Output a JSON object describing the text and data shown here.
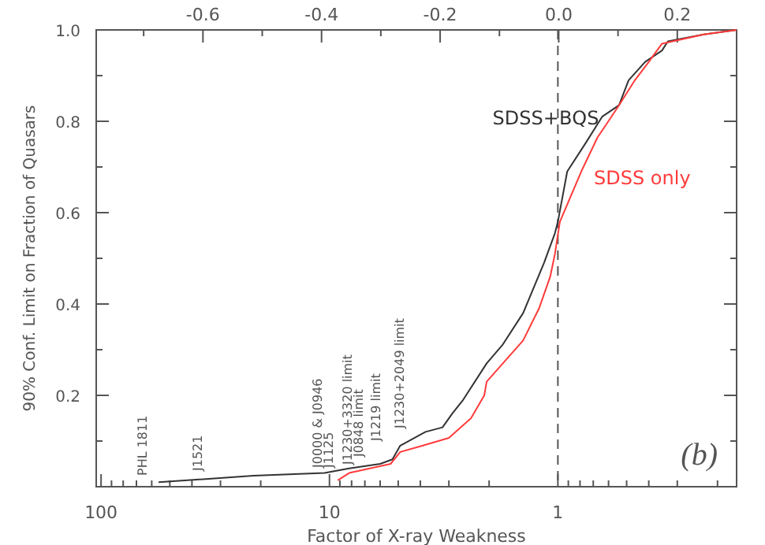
{
  "chart_data": {
    "type": "line",
    "xlabel": "Factor of X-ray Weakness",
    "ylabel": "90% Conf. Limit on Fraction of Quasars",
    "log": "x",
    "xlim": [
      105,
      0.165
    ],
    "xticks": [
      {
        "value": 100,
        "label": "100"
      },
      {
        "value": 90,
        "label": null
      },
      {
        "value": 80,
        "label": null
      },
      {
        "value": 70,
        "label": null
      },
      {
        "value": 60,
        "label": null
      },
      {
        "value": 50,
        "label": null
      },
      {
        "value": 40,
        "label": null
      },
      {
        "value": 30,
        "label": null
      },
      {
        "value": 20,
        "label": null
      },
      {
        "value": 10,
        "label": "10"
      },
      {
        "value": 9,
        "label": null
      },
      {
        "value": 8,
        "label": null
      },
      {
        "value": 7,
        "label": null
      },
      {
        "value": 6,
        "label": null
      },
      {
        "value": 5,
        "label": null
      },
      {
        "value": 4,
        "label": null
      },
      {
        "value": 3,
        "label": null
      },
      {
        "value": 2,
        "label": null
      },
      {
        "value": 1,
        "label": "1"
      },
      {
        "value": 0.9,
        "label": null
      },
      {
        "value": 0.8,
        "label": null
      },
      {
        "value": 0.7,
        "label": null
      },
      {
        "value": 0.6,
        "label": null
      },
      {
        "value": 0.5,
        "label": null
      },
      {
        "value": 0.4,
        "label": null
      },
      {
        "value": 0.3,
        "label": null
      },
      {
        "value": 0.2,
        "label": null
      }
    ],
    "x2lim": [
      -0.78,
      0.3
    ],
    "x2ticks": [
      {
        "value": -0.7,
        "label": null
      },
      -0.6,
      {
        "value": -0.5,
        "label": null
      },
      -0.4,
      {
        "value": -0.3,
        "label": null
      },
      -0.2,
      {
        "value": -0.1,
        "label": null
      },
      {
        "value": 0,
        "label": "0.0"
      },
      {
        "value": 0.1,
        "label": null
      },
      0.2
    ],
    "ylim": [
      0,
      1
    ],
    "yticks": [
      {
        "value": 0.1,
        "label": null
      },
      0.2,
      {
        "value": 0.3,
        "label": null
      },
      0.4,
      {
        "value": 0.5,
        "label": null
      },
      0.6,
      {
        "value": 0.7,
        "label": null
      },
      0.8,
      {
        "value": 0.9,
        "label": null
      },
      {
        "value": 1,
        "label": "1.0"
      }
    ],
    "grid": false,
    "marker": "none",
    "series": [
      {
        "name": "SDSS+BQS",
        "color": "#333333",
        "x": [
          56,
          21.5,
          10.5,
          8.2,
          6.0,
          5.3,
          4.9,
          3.8,
          3.2,
          2.9,
          2.6,
          2.05,
          1.75,
          1.42,
          1.15,
          1.03,
          1.0,
          0.91,
          0.75,
          0.64,
          0.54,
          0.49,
          0.415,
          0.35,
          0.33,
          0.23,
          0.165
        ],
        "values": [
          0.01,
          0.024,
          0.03,
          0.04,
          0.05,
          0.06,
          0.09,
          0.12,
          0.13,
          0.16,
          0.19,
          0.27,
          0.31,
          0.38,
          0.49,
          0.555,
          0.58,
          0.69,
          0.755,
          0.81,
          0.835,
          0.89,
          0.93,
          0.955,
          0.975,
          0.99,
          1.0
        ]
      },
      {
        "name": "SDSS only",
        "color": "#ff3b3b",
        "x": [
          9.2,
          8.2,
          5.4,
          4.9,
          3.9,
          3.0,
          2.4,
          2.1,
          2.05,
          1.42,
          1.21,
          1.08,
          1.03,
          0.98,
          0.79,
          0.67,
          0.54,
          0.46,
          0.4,
          0.35,
          0.23,
          0.165
        ],
        "values": [
          0.014,
          0.03,
          0.05,
          0.076,
          0.09,
          0.107,
          0.15,
          0.2,
          0.23,
          0.32,
          0.39,
          0.46,
          0.51,
          0.58,
          0.69,
          0.765,
          0.835,
          0.89,
          0.93,
          0.97,
          0.99,
          1.0
        ]
      }
    ],
    "ref_lines": [
      {
        "axis": "x",
        "value": 1,
        "line_style": "dashed",
        "color": "#555555"
      }
    ],
    "annotations": [
      "PHL 1811",
      "J1521",
      "J0000 & J0946",
      "J1125",
      "J1230+3320 limit",
      "J0848 limit",
      "J1219 limit",
      "J1230+2049 limit",
      "(b)"
    ]
  }
}
